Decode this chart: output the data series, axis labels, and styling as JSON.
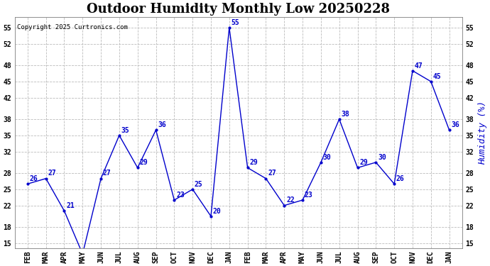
{
  "title": "Outdoor Humidity Monthly Low 20250228",
  "copyright": "Copyright 2025 Curtronics.com",
  "ylabel_right": "Humidity (%)",
  "x_labels": [
    "FEB",
    "MAR",
    "APR",
    "MAY",
    "JUN",
    "JUL",
    "AUG",
    "SEP",
    "OCT",
    "NOV",
    "DEC",
    "JAN",
    "FEB",
    "MAR",
    "APR",
    "MAY",
    "JUN",
    "JUL",
    "AUG",
    "SEP",
    "OCT",
    "NOV",
    "DEC",
    "JAN"
  ],
  "values": [
    26,
    27,
    21,
    13,
    27,
    35,
    29,
    36,
    23,
    25,
    20,
    55,
    29,
    27,
    22,
    23,
    30,
    38,
    29,
    30,
    26,
    47,
    45,
    36
  ],
  "line_color": "#0000cc",
  "marker": ".",
  "marker_size": 4,
  "ylim_min": 14,
  "ylim_max": 57,
  "yticks": [
    15,
    18,
    22,
    25,
    28,
    32,
    35,
    38,
    42,
    45,
    48,
    52,
    55
  ],
  "grid_color": "#bbbbbb",
  "bg_color": "#ffffff",
  "title_fontsize": 13,
  "label_fontsize": 7,
  "annotation_fontsize": 7,
  "copyright_color": "#000000",
  "ylabel_right_color": "#0000cc"
}
